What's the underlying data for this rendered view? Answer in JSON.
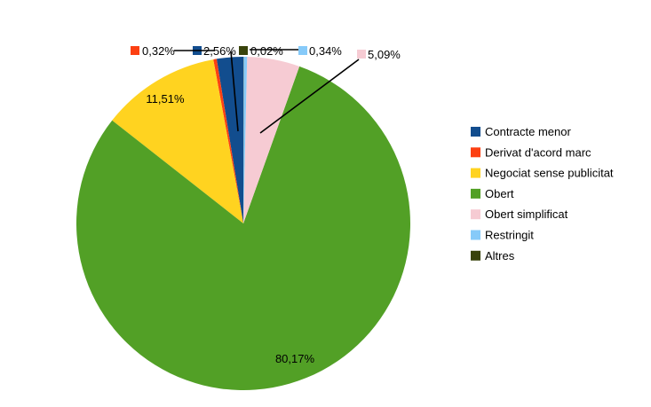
{
  "chart_data": {
    "type": "pie",
    "unit": "%",
    "legend_position": "right",
    "slices": [
      {
        "name": "Contracte menor",
        "value": 2.56,
        "label": "2,56%",
        "color": "#124D8E",
        "label_placement": "outside"
      },
      {
        "name": "Derivat d'acord marc",
        "value": 0.32,
        "label": "0,32%",
        "color": "#FC4012",
        "label_placement": "outside"
      },
      {
        "name": "Negociat sense publicitat",
        "value": 11.51,
        "label": "11,51%",
        "color": "#FFD320",
        "label_placement": "inside"
      },
      {
        "name": "Obert",
        "value": 80.17,
        "label": "80,17%",
        "color": "#52A026",
        "label_placement": "inside"
      },
      {
        "name": "Obert simplificat",
        "value": 5.09,
        "label": "5,09%",
        "color": "#F6CBD3",
        "label_placement": "outside"
      },
      {
        "name": "Restringit",
        "value": 0.34,
        "label": "0,34%",
        "color": "#86CAF9",
        "label_placement": "outside"
      },
      {
        "name": "Altres",
        "value": 0.02,
        "label": "0,02%",
        "color": "#39430B",
        "label_placement": "outside"
      }
    ],
    "start_angle_deg": 90,
    "direction": "counterclockwise"
  },
  "legend": {
    "items": [
      {
        "label": "Contracte menor",
        "color": "#124D8E"
      },
      {
        "label": "Derivat d'acord marc",
        "color": "#FC4012"
      },
      {
        "label": "Negociat sense publicitat",
        "color": "#FFD320"
      },
      {
        "label": "Obert",
        "color": "#52A026"
      },
      {
        "label": "Obert simplificat",
        "color": "#F6CBD3"
      },
      {
        "label": "Restringit",
        "color": "#86CAF9"
      },
      {
        "label": "Altres",
        "color": "#39430B"
      }
    ]
  }
}
